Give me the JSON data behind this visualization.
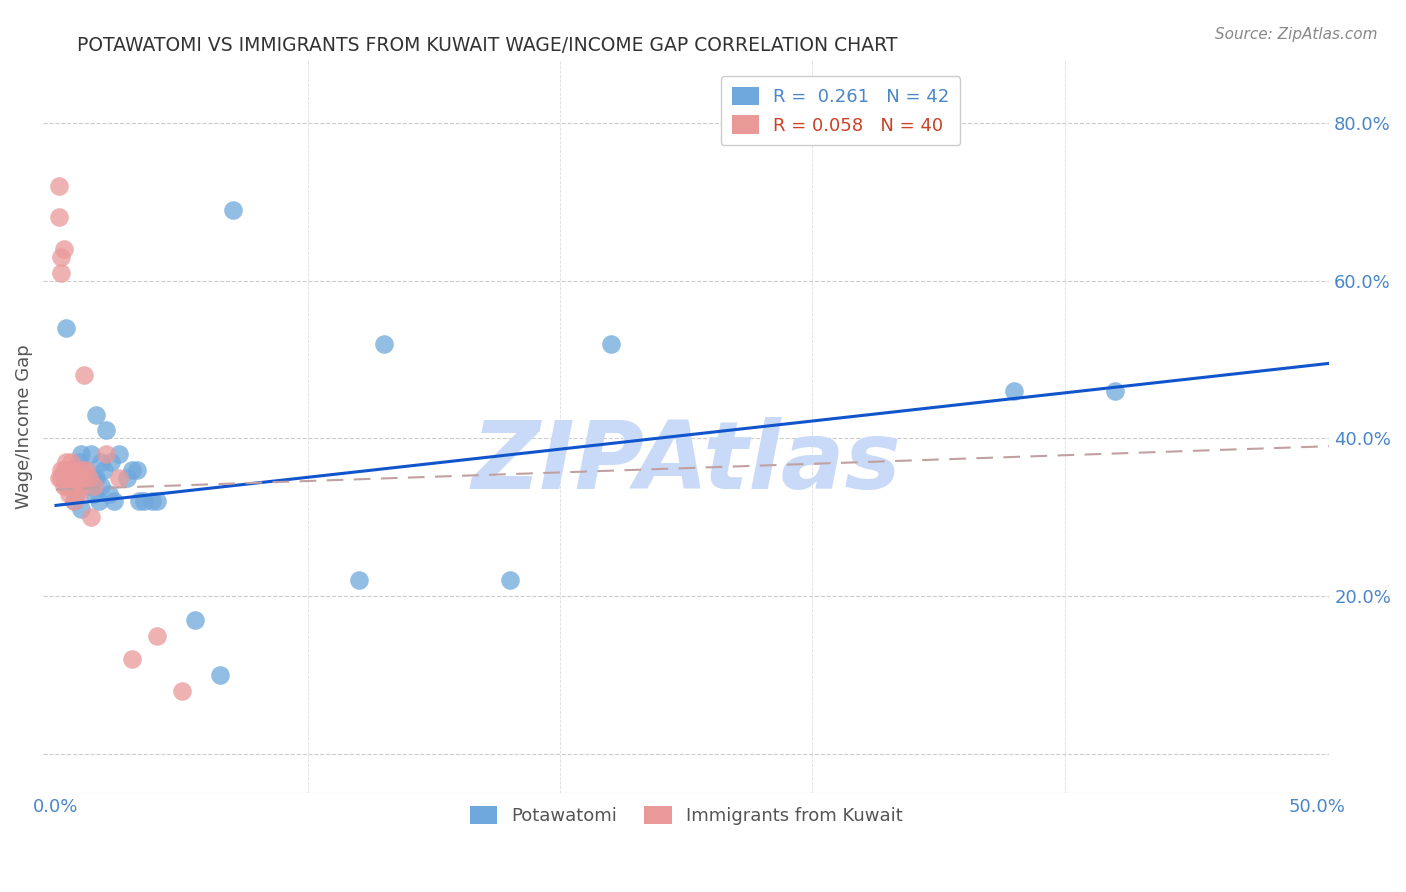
{
  "title": "POTAWATOMI VS IMMIGRANTS FROM KUWAIT WAGE/INCOME GAP CORRELATION CHART",
  "source": "Source: ZipAtlas.com",
  "ylabel": "Wage/Income Gap",
  "yticks": [
    0.0,
    0.2,
    0.4,
    0.6,
    0.8
  ],
  "ytick_labels": [
    "",
    "20.0%",
    "40.0%",
    "60.0%",
    "80.0%"
  ],
  "xlim": [
    -0.005,
    0.505
  ],
  "ylim": [
    -0.05,
    0.88
  ],
  "xticks": [
    0.0,
    0.5
  ],
  "xtick_labels": [
    "0.0%",
    "50.0%"
  ],
  "blue_R": 0.261,
  "blue_N": 42,
  "pink_R": 0.058,
  "pink_N": 40,
  "blue_color": "#6fa8dc",
  "pink_color": "#ea9999",
  "blue_line_color": "#1155cc",
  "pink_line_color": "#c0a0a0",
  "watermark": "ZIPAtlas",
  "watermark_color": "#c9daf8",
  "background_color": "#ffffff",
  "blue_scatter_x": [
    0.003,
    0.004,
    0.006,
    0.007,
    0.008,
    0.008,
    0.009,
    0.01,
    0.01,
    0.011,
    0.012,
    0.013,
    0.014,
    0.015,
    0.015,
    0.016,
    0.016,
    0.017,
    0.018,
    0.018,
    0.019,
    0.02,
    0.021,
    0.022,
    0.023,
    0.025,
    0.028,
    0.03,
    0.032,
    0.033,
    0.035,
    0.038,
    0.04,
    0.055,
    0.065,
    0.07,
    0.12,
    0.13,
    0.18,
    0.22,
    0.38,
    0.42
  ],
  "blue_scatter_y": [
    0.35,
    0.54,
    0.36,
    0.32,
    0.35,
    0.33,
    0.37,
    0.38,
    0.31,
    0.35,
    0.36,
    0.34,
    0.38,
    0.35,
    0.33,
    0.43,
    0.35,
    0.32,
    0.37,
    0.34,
    0.36,
    0.41,
    0.33,
    0.37,
    0.32,
    0.38,
    0.35,
    0.36,
    0.36,
    0.32,
    0.32,
    0.32,
    0.32,
    0.17,
    0.1,
    0.69,
    0.22,
    0.52,
    0.22,
    0.52,
    0.46,
    0.46
  ],
  "pink_scatter_x": [
    0.001,
    0.001,
    0.001,
    0.002,
    0.002,
    0.002,
    0.002,
    0.003,
    0.003,
    0.003,
    0.003,
    0.004,
    0.004,
    0.004,
    0.004,
    0.005,
    0.005,
    0.005,
    0.006,
    0.006,
    0.006,
    0.007,
    0.007,
    0.007,
    0.008,
    0.008,
    0.009,
    0.009,
    0.01,
    0.01,
    0.011,
    0.012,
    0.013,
    0.014,
    0.015,
    0.02,
    0.025,
    0.03,
    0.04,
    0.05
  ],
  "pink_scatter_y": [
    0.72,
    0.68,
    0.35,
    0.63,
    0.61,
    0.36,
    0.35,
    0.64,
    0.36,
    0.35,
    0.34,
    0.37,
    0.36,
    0.35,
    0.34,
    0.36,
    0.35,
    0.33,
    0.37,
    0.36,
    0.34,
    0.35,
    0.34,
    0.32,
    0.36,
    0.35,
    0.34,
    0.33,
    0.36,
    0.35,
    0.48,
    0.36,
    0.35,
    0.3,
    0.34,
    0.38,
    0.35,
    0.12,
    0.15,
    0.08
  ],
  "blue_trend_x": [
    0.0,
    0.505
  ],
  "blue_trend_y": [
    0.315,
    0.495
  ],
  "pink_trend_x": [
    0.0,
    0.505
  ],
  "pink_trend_y": [
    0.335,
    0.39
  ]
}
